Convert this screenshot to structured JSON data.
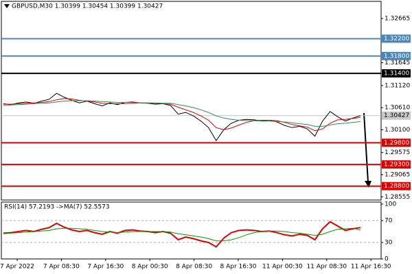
{
  "chart_data": [
    {
      "type": "line",
      "title": "GBPUSD,M30 1.30399 1.30454 1.30399 1.30427",
      "ylim": [
        1.2848,
        1.3306
      ],
      "yticks": [
        1.32665,
        1.31645,
        {
          "value": 1.3112,
          "label": "1.31120"
        },
        {
          "value": 1.3061,
          "label": "1.30610"
        },
        {
          "value": 1.301,
          "label": "1.30100"
        },
        1.29575,
        1.29065,
        1.28555
      ],
      "levels": [
        {
          "value": 1.322,
          "label": "1.32200",
          "color": "#4a86b8"
        },
        {
          "value": 1.318,
          "label": "1.31800",
          "color": "#4a86b8"
        },
        {
          "value": 1.314,
          "label": "1.31400",
          "color": "#000000"
        },
        {
          "value": 1.298,
          "label": "1.29800",
          "color": "#e00000"
        },
        {
          "value": 1.293,
          "label": "1.29300",
          "color": "#e00000"
        },
        {
          "value": 1.288,
          "label": "1.28800",
          "color": "#e00000"
        }
      ],
      "last_price": 1.30427,
      "time_labels": [
        "7 Apr 2022",
        "7 Apr 08:30",
        "7 Apr 16:30",
        "8 Apr 00:30",
        "8 Apr 08:30",
        "8 Apr 16:30",
        "11 Apr 00:30",
        "11 Apr 08:30",
        "11 Apr 16:30"
      ],
      "series": [
        {
          "name": "Close",
          "color": "#000000",
          "values": [
            1.307,
            1.3068,
            1.3072,
            1.3074,
            1.3071,
            1.3076,
            1.308,
            1.3094,
            1.3085,
            1.3078,
            1.3072,
            1.3076,
            1.307,
            1.3065,
            1.3072,
            1.3068,
            1.3073,
            1.3074,
            1.3072,
            1.3071,
            1.3069,
            1.307,
            1.3066,
            1.3046,
            1.305,
            1.3042,
            1.303,
            1.3015,
            1.2985,
            1.301,
            1.3025,
            1.3032,
            1.3034,
            1.3033,
            1.303,
            1.3032,
            1.3028,
            1.302,
            1.3015,
            1.3018,
            1.3012,
            1.2995,
            1.303,
            1.3052,
            1.304,
            1.303,
            1.3037,
            1.30427
          ]
        },
        {
          "name": "MA fast",
          "color": "#e00000",
          "values": [
            1.3069,
            1.3069,
            1.307,
            1.3071,
            1.3072,
            1.3073,
            1.3075,
            1.3079,
            1.3082,
            1.3081,
            1.3078,
            1.3076,
            1.3074,
            1.3071,
            1.307,
            1.307,
            1.307,
            1.3071,
            1.3072,
            1.3072,
            1.3071,
            1.307,
            1.3069,
            1.3062,
            1.3056,
            1.305,
            1.3042,
            1.3032,
            1.3015,
            1.301,
            1.3014,
            1.3021,
            1.3027,
            1.3031,
            1.3032,
            1.3032,
            1.3031,
            1.3027,
            1.3022,
            1.3019,
            1.3016,
            1.3008,
            1.3012,
            1.3025,
            1.3033,
            1.3034,
            1.3036,
            1.3039
          ]
        },
        {
          "name": "MA slow",
          "color": "#2e8b57",
          "values": [
            1.3066,
            1.3067,
            1.3068,
            1.3069,
            1.307,
            1.3071,
            1.3072,
            1.3074,
            1.3076,
            1.3077,
            1.3077,
            1.3077,
            1.3076,
            1.3075,
            1.3074,
            1.3073,
            1.3073,
            1.3073,
            1.3072,
            1.3072,
            1.3072,
            1.3071,
            1.3071,
            1.3068,
            1.3065,
            1.3061,
            1.3056,
            1.305,
            1.3042,
            1.3037,
            1.3034,
            1.3032,
            1.3031,
            1.3031,
            1.303,
            1.303,
            1.3029,
            1.3028,
            1.3026,
            1.3024,
            1.3022,
            1.3018,
            1.3018,
            1.3021,
            1.3024,
            1.3025,
            1.3027,
            1.3029
          ]
        }
      ]
    },
    {
      "type": "line",
      "title": "RSI(14) 57.2193 ->MA(7) 52.5573",
      "ylim": [
        0,
        100
      ],
      "yticks": [
        100,
        70,
        30,
        0
      ],
      "series": [
        {
          "name": "RSI(14)",
          "color": "#e00000",
          "values": [
            47,
            48,
            50,
            52,
            50,
            54,
            57,
            65,
            58,
            53,
            50,
            52,
            48,
            45,
            50,
            47,
            52,
            53,
            51,
            50,
            48,
            50,
            47,
            35,
            40,
            37,
            33,
            30,
            22,
            38,
            48,
            52,
            53,
            52,
            50,
            51,
            48,
            44,
            42,
            45,
            43,
            35,
            55,
            68,
            60,
            52,
            55,
            57.2193
          ]
        },
        {
          "name": "MA(7)",
          "color": "#009900",
          "values": [
            46,
            47,
            48,
            49,
            50,
            51,
            52,
            55,
            56,
            56,
            55,
            54,
            52,
            50,
            49,
            48,
            49,
            50,
            50,
            50,
            50,
            50,
            49,
            46,
            44,
            42,
            40,
            37,
            33,
            33,
            35,
            39,
            44,
            48,
            50,
            51,
            51,
            50,
            48,
            47,
            45,
            43,
            45,
            50,
            54,
            55,
            56,
            52.5573
          ]
        }
      ]
    }
  ]
}
